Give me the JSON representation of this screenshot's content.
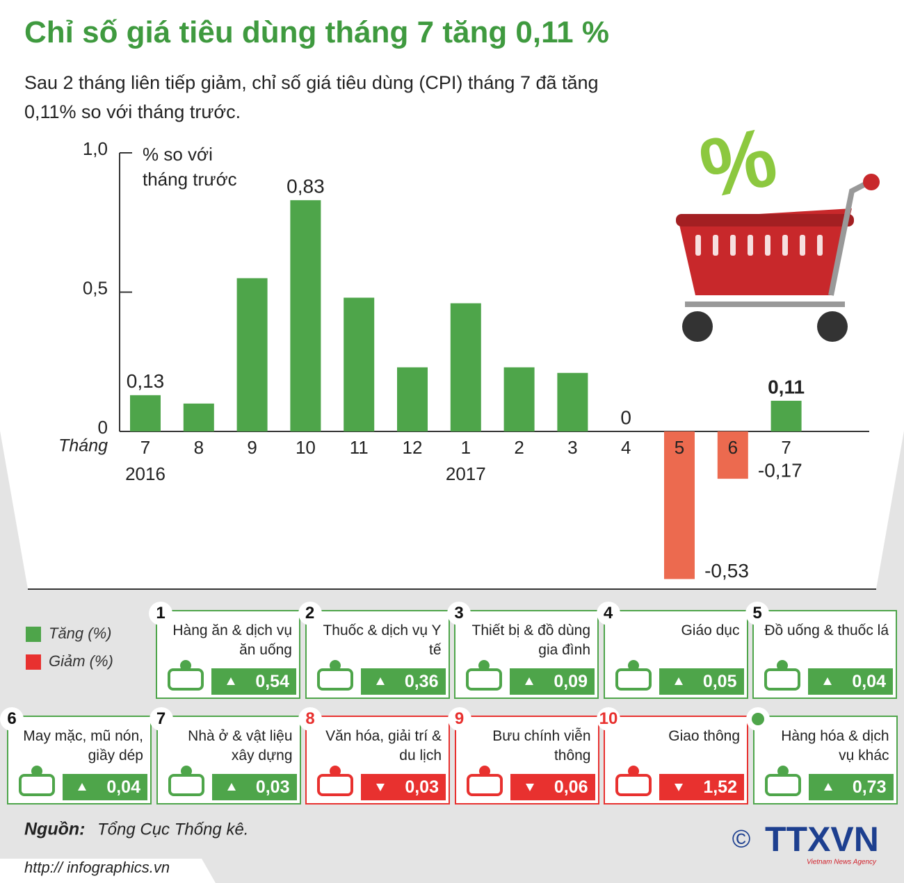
{
  "header": {
    "title": "Chỉ số giá tiêu dùng tháng 7 tăng 0,11 %",
    "subtitle": "Sau 2 tháng liên tiếp giảm, chỉ số giá tiêu dùng (CPI) tháng 7 đã tăng 0,11% so với tháng trước."
  },
  "chart_data": {
    "type": "bar",
    "y_label": "% so với tháng trước",
    "x_label": "Tháng",
    "categories": [
      "7",
      "8",
      "9",
      "10",
      "11",
      "12",
      "1",
      "2",
      "3",
      "4",
      "5",
      "6",
      "7"
    ],
    "year_labels": [
      "2016",
      null,
      null,
      null,
      null,
      null,
      "2017",
      null,
      null,
      null,
      null,
      null,
      null
    ],
    "values": [
      0.13,
      0.1,
      0.55,
      0.83,
      0.48,
      0.23,
      0.46,
      0.23,
      0.21,
      0,
      -0.53,
      -0.17,
      0.11
    ],
    "value_labels": [
      "0,13",
      null,
      null,
      "0,83",
      null,
      null,
      null,
      null,
      null,
      "0",
      "-0,53",
      "-0,17",
      "0,11"
    ],
    "color": "#4ea54a",
    "negative_color": "#ec6a4f",
    "ylim": [
      -0.55,
      1.0
    ],
    "yticks": [
      {
        "value": 0,
        "label": "0"
      },
      {
        "value": 0.5,
        "label": "0,5"
      },
      {
        "value": 1.0,
        "label": "1,0"
      }
    ]
  },
  "legend": [
    {
      "label": "Tăng (%)",
      "color": "#4ea54a"
    },
    {
      "label": "Giảm (%)",
      "color": "#e8312f"
    }
  ],
  "groups": [
    {
      "no": "1",
      "name": "Hàng ăn & dịch vụ ăn uống",
      "change": "up",
      "value": "0,54"
    },
    {
      "no": "2",
      "name": "Thuốc & dịch vụ Y tế",
      "change": "up",
      "value": "0,36"
    },
    {
      "no": "3",
      "name": "Thiết bị & đồ dùng gia đình",
      "change": "up",
      "value": "0,09"
    },
    {
      "no": "4",
      "name": "Giáo dục",
      "change": "up",
      "value": "0,05"
    },
    {
      "no": "5",
      "name": "Đồ uống & thuốc lá",
      "change": "up",
      "value": "0,04"
    },
    {
      "no": "6",
      "name": "May mặc, mũ nón, giầy dép",
      "change": "up",
      "value": "0,04"
    },
    {
      "no": "7",
      "name": "Nhà ở & vật liệu xây dựng",
      "change": "up",
      "value": "0,03"
    },
    {
      "no": "8",
      "name": "Văn hóa, giải trí & du lịch",
      "change": "down",
      "value": "0,03"
    },
    {
      "no": "9",
      "name": "Bưu chính viễn thông",
      "change": "down",
      "value": "0,06"
    },
    {
      "no": "10",
      "name": "Giao thông",
      "change": "down",
      "value": "1,52"
    },
    {
      "no": null,
      "name": "Hàng hóa & dịch vụ khác",
      "change": "up",
      "value": "0,73"
    }
  ],
  "footer": {
    "source_label": "Nguồn:",
    "source": "Tổng Cục Thống kê.",
    "url": "http:// infographics.vn",
    "copyright": "©",
    "logo": "TTXVN",
    "agency": "Vietnam News Agency"
  }
}
